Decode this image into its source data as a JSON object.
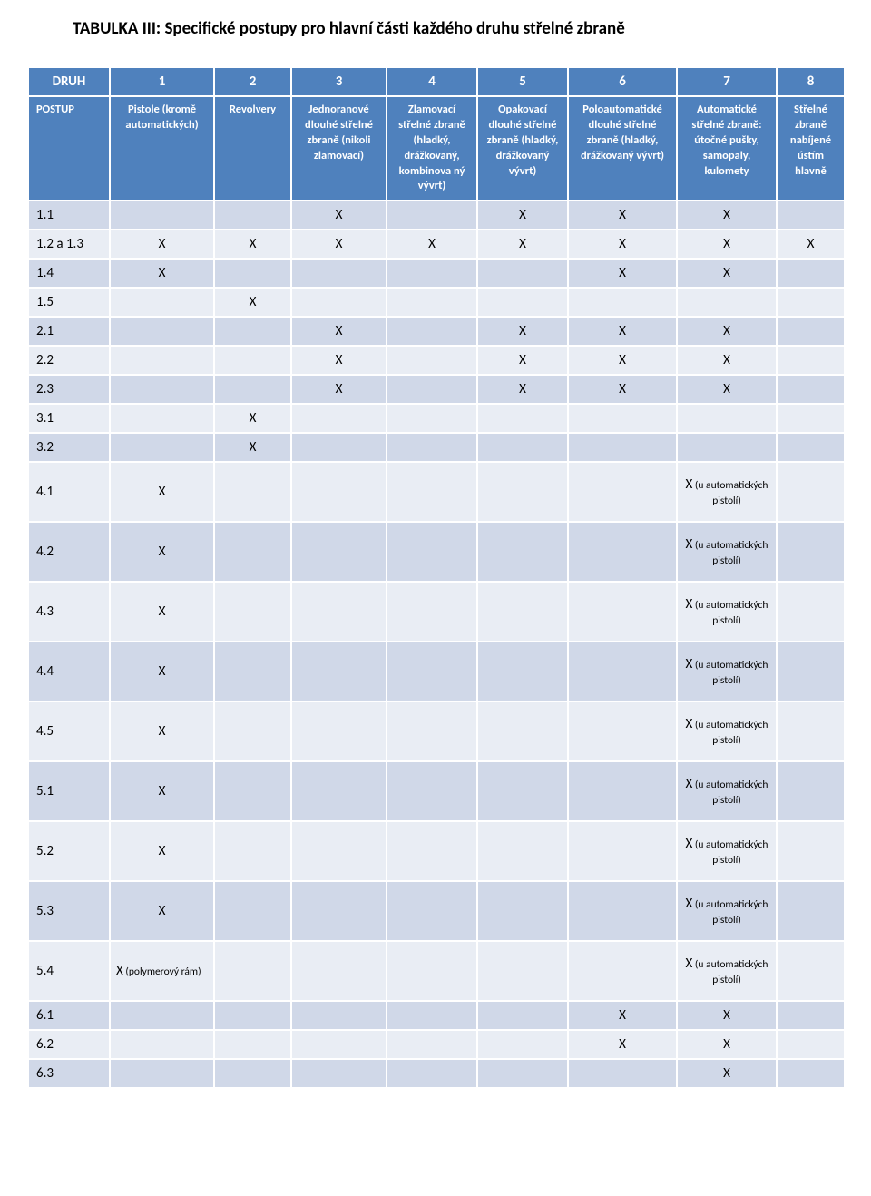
{
  "title": "TABULKA III: Specifické postupy pro hlavní části každého druhu střelné zbraně",
  "colors": {
    "header_bg": "#4f81bd",
    "header_text": "#ffffff",
    "band_dark": "#d0d8e8",
    "band_light": "#e9edf4",
    "page_bg": "#ffffff",
    "text": "#000000"
  },
  "header_row1": [
    "DRUH",
    "1",
    "2",
    "3",
    "4",
    "5",
    "6",
    "7",
    "8"
  ],
  "header_row2": [
    "POSTUP",
    "Pistole (kromě automatických)",
    "Revolvery",
    "Jednoranové dlouhé střelné zbraně (nikoli zlamovací)",
    "Zlamovací střelné zbraně (hladký, drážkovaný, kombinova ný vývrt)",
    "Opakovací dlouhé střelné zbraně (hladký, drážkovaný vývrt)",
    "Poloautomatické dlouhé střelné zbraně (hladký, drážkovaný vývrt)",
    "Automatické střelné zbraně: útočné pušky, samopaly, kulomety",
    "Střelné zbraně nabíjené ústím hlavně"
  ],
  "x": "X",
  "note_auto": "X (u automatických pistolí)",
  "note_poly": "X (polymerový rám)",
  "rows": [
    {
      "label": "1.1",
      "cells": [
        "",
        "",
        "X",
        "",
        "X",
        "X",
        "X",
        ""
      ],
      "tall": false
    },
    {
      "label": "1.2 a 1.3",
      "cells": [
        "X",
        "X",
        "X",
        "X",
        "X",
        "X",
        "X",
        "X"
      ],
      "tall": false
    },
    {
      "label": "1.4",
      "cells": [
        "X",
        "",
        "",
        "",
        "",
        "X",
        "X",
        ""
      ],
      "tall": false
    },
    {
      "label": "1.5",
      "cells": [
        "",
        "X",
        "",
        "",
        "",
        "",
        "",
        ""
      ],
      "tall": false
    },
    {
      "label": "2.1",
      "cells": [
        "",
        "",
        "X",
        "",
        "X",
        "X",
        "X",
        ""
      ],
      "tall": false
    },
    {
      "label": "2.2",
      "cells": [
        "",
        "",
        "X",
        "",
        "X",
        "X",
        "X",
        ""
      ],
      "tall": false
    },
    {
      "label": "2.3",
      "cells": [
        "",
        "",
        "X",
        "",
        "X",
        "X",
        "X",
        ""
      ],
      "tall": false
    },
    {
      "label": "3.1",
      "cells": [
        "",
        "X",
        "",
        "",
        "",
        "",
        "",
        ""
      ],
      "tall": false
    },
    {
      "label": "3.2",
      "cells": [
        "",
        "X",
        "",
        "",
        "",
        "",
        "",
        ""
      ],
      "tall": false
    },
    {
      "label": "4.1",
      "cells": [
        "X",
        "",
        "",
        "",
        "",
        "",
        "NOTE",
        ""
      ],
      "tall": true
    },
    {
      "label": "4.2",
      "cells": [
        "X",
        "",
        "",
        "",
        "",
        "",
        "NOTE",
        ""
      ],
      "tall": true
    },
    {
      "label": "4.3",
      "cells": [
        "X",
        "",
        "",
        "",
        "",
        "",
        "NOTE",
        ""
      ],
      "tall": true
    },
    {
      "label": "4.4",
      "cells": [
        "X",
        "",
        "",
        "",
        "",
        "",
        "NOTE",
        ""
      ],
      "tall": true
    },
    {
      "label": "4.5",
      "cells": [
        "X",
        "",
        "",
        "",
        "",
        "",
        "NOTE",
        ""
      ],
      "tall": true
    },
    {
      "label": "5.1",
      "cells": [
        "X",
        "",
        "",
        "",
        "",
        "",
        "NOTE",
        ""
      ],
      "tall": true
    },
    {
      "label": "5.2",
      "cells": [
        "X",
        "",
        "",
        "",
        "",
        "",
        "NOTE",
        ""
      ],
      "tall": true
    },
    {
      "label": "5.3",
      "cells": [
        "X",
        "",
        "",
        "",
        "",
        "",
        "NOTE",
        ""
      ],
      "tall": true
    },
    {
      "label": "5.4",
      "cells": [
        "POLY",
        "",
        "",
        "",
        "",
        "",
        "NOTE",
        ""
      ],
      "tall": true
    },
    {
      "label": "6.1",
      "cells": [
        "",
        "",
        "",
        "",
        "",
        "X",
        "X",
        ""
      ],
      "tall": false
    },
    {
      "label": "6.2",
      "cells": [
        "",
        "",
        "",
        "",
        "",
        "X",
        "X",
        ""
      ],
      "tall": false
    },
    {
      "label": "6.3",
      "cells": [
        "",
        "",
        "",
        "",
        "",
        "",
        "X",
        ""
      ],
      "tall": false
    }
  ]
}
